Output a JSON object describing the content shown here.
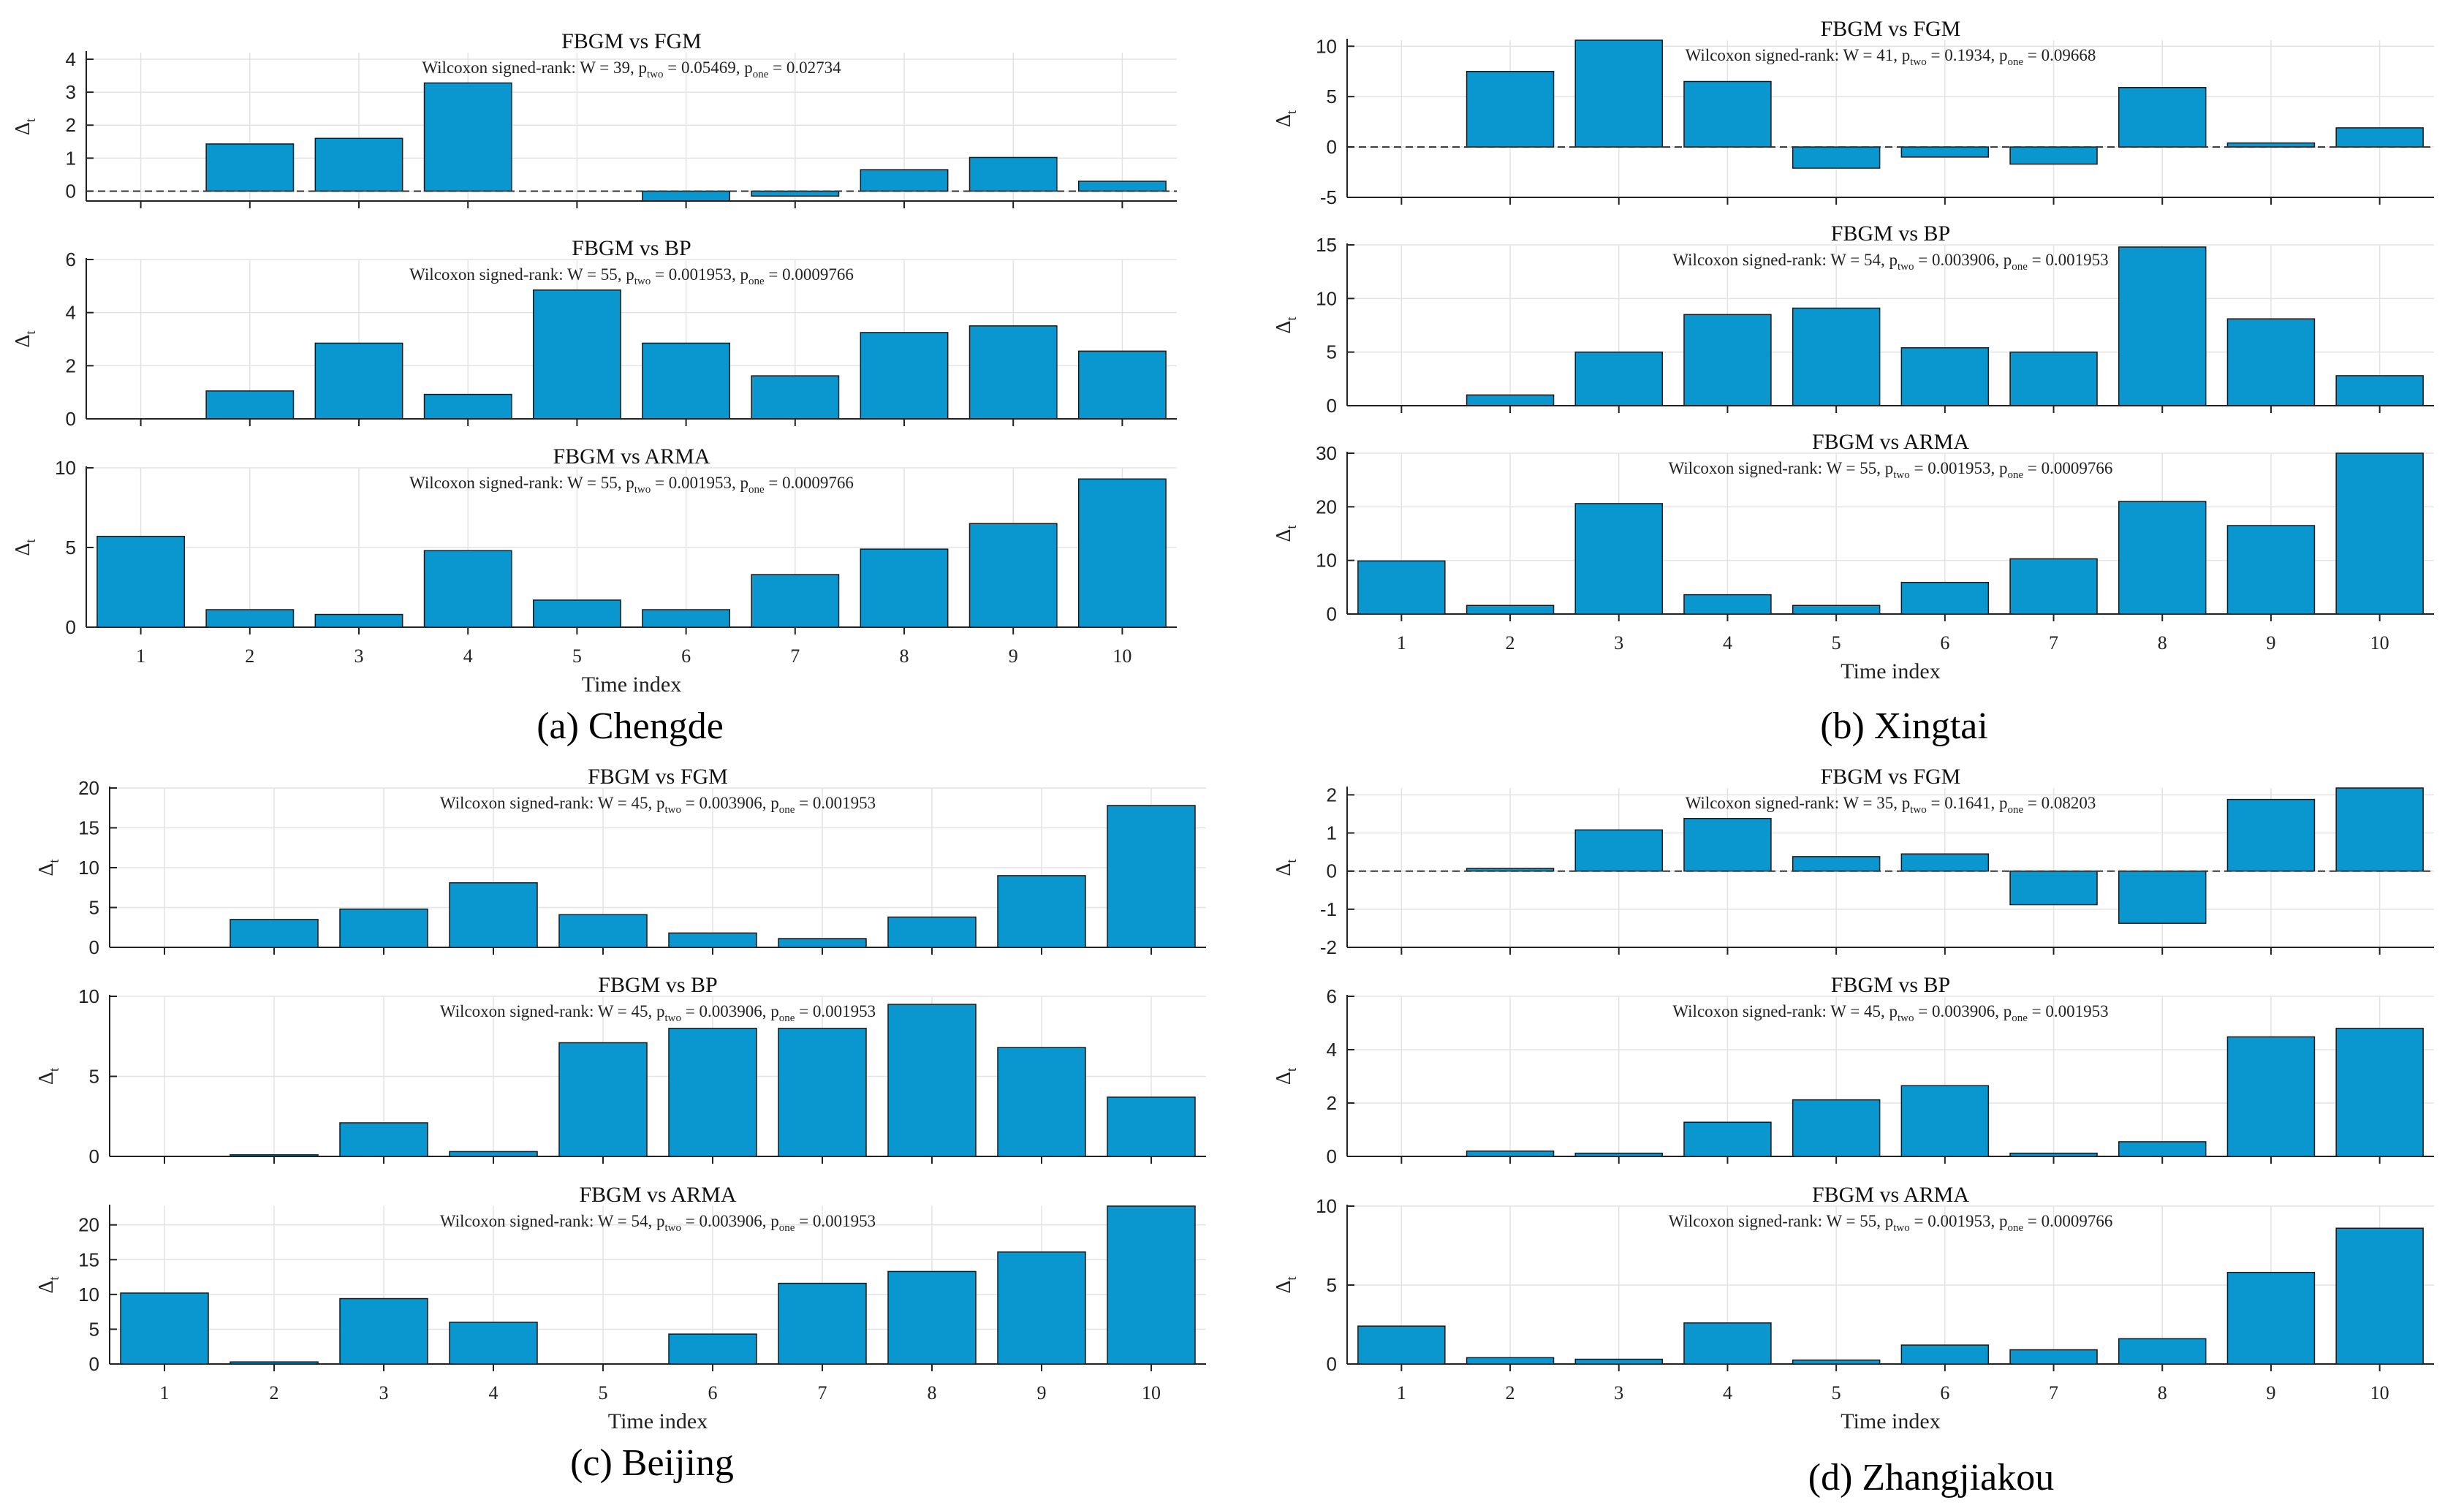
{
  "figure": {
    "captions": [
      "(a) Chengde",
      "(b) Xingtai",
      "(c) Beijing",
      "(d) Zhangjiakou"
    ],
    "xlabel": "Time index",
    "ylabel": "Δ",
    "ylabel_sub": "t",
    "bar_color": "#0a96cf",
    "stat_prefix": "Wilcoxon  signed-rank:",
    "p_two_sub": "two",
    "p_one_sub": "one"
  },
  "chart_data": [
    {
      "type": "bar",
      "panel": "a",
      "region": "Chengde",
      "title": "FBGM vs FGM",
      "categories": [
        "1",
        "2",
        "3",
        "4",
        "5",
        "6",
        "7",
        "8",
        "9",
        "10"
      ],
      "values": [
        0,
        1.43,
        1.6,
        3.28,
        0,
        -0.3,
        -0.15,
        0.65,
        1.02,
        0.3
      ],
      "ylim": [
        -0.3,
        4.2
      ],
      "yticks": [
        0,
        1,
        2,
        3,
        4
      ],
      "zero_line": true,
      "stats": {
        "W": "39",
        "p_two": "0.05469",
        "p_one": "0.02734"
      }
    },
    {
      "type": "bar",
      "panel": "a",
      "region": "Chengde",
      "title": "FBGM vs BP",
      "categories": [
        "1",
        "2",
        "3",
        "4",
        "5",
        "6",
        "7",
        "8",
        "9",
        "10"
      ],
      "values": [
        0,
        1.05,
        2.85,
        0.92,
        4.85,
        2.85,
        1.62,
        3.25,
        3.5,
        2.55
      ],
      "ylim": [
        0,
        6
      ],
      "yticks": [
        0,
        2,
        4,
        6
      ],
      "zero_line": false,
      "stats": {
        "W": "55",
        "p_two": "0.001953",
        "p_one": "0.0009766"
      }
    },
    {
      "type": "bar",
      "panel": "a",
      "region": "Chengde",
      "title": "FBGM vs ARMA",
      "categories": [
        "1",
        "2",
        "3",
        "4",
        "5",
        "6",
        "7",
        "8",
        "9",
        "10"
      ],
      "values": [
        5.7,
        1.1,
        0.8,
        4.8,
        1.7,
        1.1,
        3.3,
        4.9,
        6.5,
        9.3
      ],
      "ylim": [
        0,
        10
      ],
      "yticks": [
        0,
        5,
        10
      ],
      "zero_line": false,
      "stats": {
        "W": "55",
        "p_two": "0.001953",
        "p_one": "0.0009766"
      }
    },
    {
      "type": "bar",
      "panel": "b",
      "region": "Xingtai",
      "title": "FBGM vs FGM",
      "categories": [
        "1",
        "2",
        "3",
        "4",
        "5",
        "6",
        "7",
        "8",
        "9",
        "10"
      ],
      "values": [
        0,
        7.5,
        10.6,
        6.5,
        -2.1,
        -1.0,
        -1.7,
        5.9,
        0.4,
        1.9
      ],
      "ylim": [
        -5,
        10.6
      ],
      "yticks": [
        -5,
        0,
        5,
        10
      ],
      "zero_line": true,
      "stats": {
        "W": "41",
        "p_two": "0.1934",
        "p_one": "0.09668"
      }
    },
    {
      "type": "bar",
      "panel": "b",
      "region": "Xingtai",
      "title": "FBGM vs BP",
      "categories": [
        "1",
        "2",
        "3",
        "4",
        "5",
        "6",
        "7",
        "8",
        "9",
        "10"
      ],
      "values": [
        0,
        1.0,
        5.0,
        8.5,
        9.1,
        5.4,
        5.0,
        14.8,
        8.1,
        2.8
      ],
      "ylim": [
        0,
        15
      ],
      "yticks": [
        0,
        5,
        10,
        15
      ],
      "zero_line": false,
      "stats": {
        "W": "54",
        "p_two": "0.003906",
        "p_one": "0.001953"
      }
    },
    {
      "type": "bar",
      "panel": "b",
      "region": "Xingtai",
      "title": "FBGM vs ARMA",
      "categories": [
        "1",
        "2",
        "3",
        "4",
        "5",
        "6",
        "7",
        "8",
        "9",
        "10"
      ],
      "values": [
        9.9,
        1.6,
        20.6,
        3.6,
        1.6,
        5.9,
        10.3,
        21.0,
        16.5,
        30.0
      ],
      "ylim": [
        0,
        30
      ],
      "yticks": [
        0,
        10,
        20,
        30
      ],
      "zero_line": false,
      "stats": {
        "W": "55",
        "p_two": "0.001953",
        "p_one": "0.0009766"
      }
    },
    {
      "type": "bar",
      "panel": "c",
      "region": "Beijing",
      "title": "FBGM vs FGM",
      "categories": [
        "1",
        "2",
        "3",
        "4",
        "5",
        "6",
        "7",
        "8",
        "9",
        "10"
      ],
      "values": [
        0,
        3.5,
        4.8,
        8.1,
        4.1,
        1.8,
        1.1,
        3.8,
        9.0,
        17.8
      ],
      "ylim": [
        0,
        20
      ],
      "yticks": [
        0,
        5,
        10,
        15,
        20
      ],
      "zero_line": false,
      "stats": {
        "W": "45",
        "p_two": "0.003906",
        "p_one": "0.001953"
      }
    },
    {
      "type": "bar",
      "panel": "c",
      "region": "Beijing",
      "title": "FBGM vs BP",
      "categories": [
        "1",
        "2",
        "3",
        "4",
        "5",
        "6",
        "7",
        "8",
        "9",
        "10"
      ],
      "values": [
        0,
        0.1,
        2.1,
        0.3,
        7.1,
        8.0,
        8.0,
        9.5,
        6.8,
        3.7
      ],
      "ylim": [
        0,
        10
      ],
      "yticks": [
        0,
        5,
        10
      ],
      "zero_line": false,
      "stats": {
        "W": "45",
        "p_two": "0.003906",
        "p_one": "0.001953"
      }
    },
    {
      "type": "bar",
      "panel": "c",
      "region": "Beijing",
      "title": "FBGM vs ARMA",
      "categories": [
        "1",
        "2",
        "3",
        "4",
        "5",
        "6",
        "7",
        "8",
        "9",
        "10"
      ],
      "values": [
        10.2,
        0.3,
        9.4,
        6.0,
        0,
        4.3,
        11.6,
        13.3,
        16.1,
        22.7
      ],
      "ylim": [
        0,
        22.7
      ],
      "yticks": [
        0,
        5,
        10,
        15,
        20
      ],
      "zero_line": true,
      "stats": {
        "W": "54",
        "p_two": "0.003906",
        "p_one": "0.001953"
      }
    },
    {
      "type": "bar",
      "panel": "d",
      "region": "Zhangjiakou",
      "title": "FBGM vs FGM",
      "categories": [
        "1",
        "2",
        "3",
        "4",
        "5",
        "6",
        "7",
        "8",
        "9",
        "10"
      ],
      "values": [
        0,
        0.07,
        1.08,
        1.38,
        0.38,
        0.45,
        -0.88,
        -1.37,
        1.88,
        2.18
      ],
      "ylim": [
        -2,
        2.18
      ],
      "yticks": [
        -2,
        -1,
        0,
        1,
        2
      ],
      "zero_line": true,
      "stats": {
        "W": "35",
        "p_two": "0.1641",
        "p_one": "0.08203"
      }
    },
    {
      "type": "bar",
      "panel": "d",
      "region": "Zhangjiakou",
      "title": "FBGM vs BP",
      "categories": [
        "1",
        "2",
        "3",
        "4",
        "5",
        "6",
        "7",
        "8",
        "9",
        "10"
      ],
      "values": [
        0,
        0.2,
        0.12,
        1.28,
        2.12,
        2.65,
        0.12,
        0.55,
        4.48,
        4.8
      ],
      "ylim": [
        0,
        6
      ],
      "yticks": [
        0,
        2,
        4,
        6
      ],
      "zero_line": false,
      "stats": {
        "W": "45",
        "p_two": "0.003906",
        "p_one": "0.001953"
      }
    },
    {
      "type": "bar",
      "panel": "d",
      "region": "Zhangjiakou",
      "title": "FBGM vs ARMA",
      "categories": [
        "1",
        "2",
        "3",
        "4",
        "5",
        "6",
        "7",
        "8",
        "9",
        "10"
      ],
      "values": [
        2.4,
        0.4,
        0.3,
        2.6,
        0.25,
        1.2,
        0.9,
        1.6,
        5.8,
        8.6
      ],
      "ylim": [
        0,
        10
      ],
      "yticks": [
        0,
        5,
        10
      ],
      "zero_line": false,
      "stats": {
        "W": "55",
        "p_two": "0.001953",
        "p_one": "0.0009766"
      }
    }
  ]
}
